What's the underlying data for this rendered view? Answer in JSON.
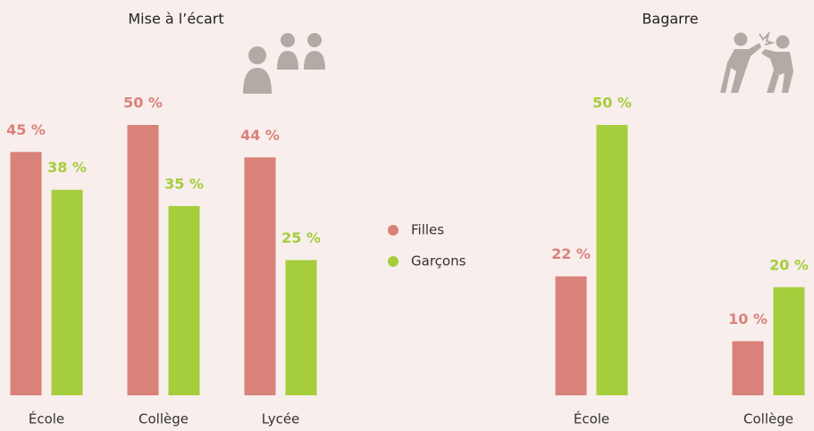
{
  "chart_data": [
    {
      "type": "bar",
      "title": "Mise à l’écart",
      "categories": [
        "École",
        "Collège",
        "Lycée"
      ],
      "series": [
        {
          "name": "Filles",
          "color": "#d9827a",
          "values": [
            45,
            50,
            44
          ],
          "value_labels": [
            "45 %",
            "50 %",
            "44 %"
          ]
        },
        {
          "name": "Garçons",
          "color": "#a5cd3c",
          "values": [
            38,
            35,
            25
          ],
          "value_labels": [
            "38 %",
            "35 %",
            "25 %"
          ]
        }
      ]
    },
    {
      "type": "bar",
      "title": "Bagarre",
      "categories": [
        "École",
        "Collège"
      ],
      "series": [
        {
          "name": "Filles",
          "color": "#d9827a",
          "values": [
            22,
            10
          ],
          "value_labels": [
            "22 %",
            "10 %"
          ]
        },
        {
          "name": "Garçons",
          "color": "#a5cd3c",
          "values": [
            50,
            20
          ],
          "value_labels": [
            "50 %",
            "20 %"
          ]
        }
      ]
    }
  ]
}
